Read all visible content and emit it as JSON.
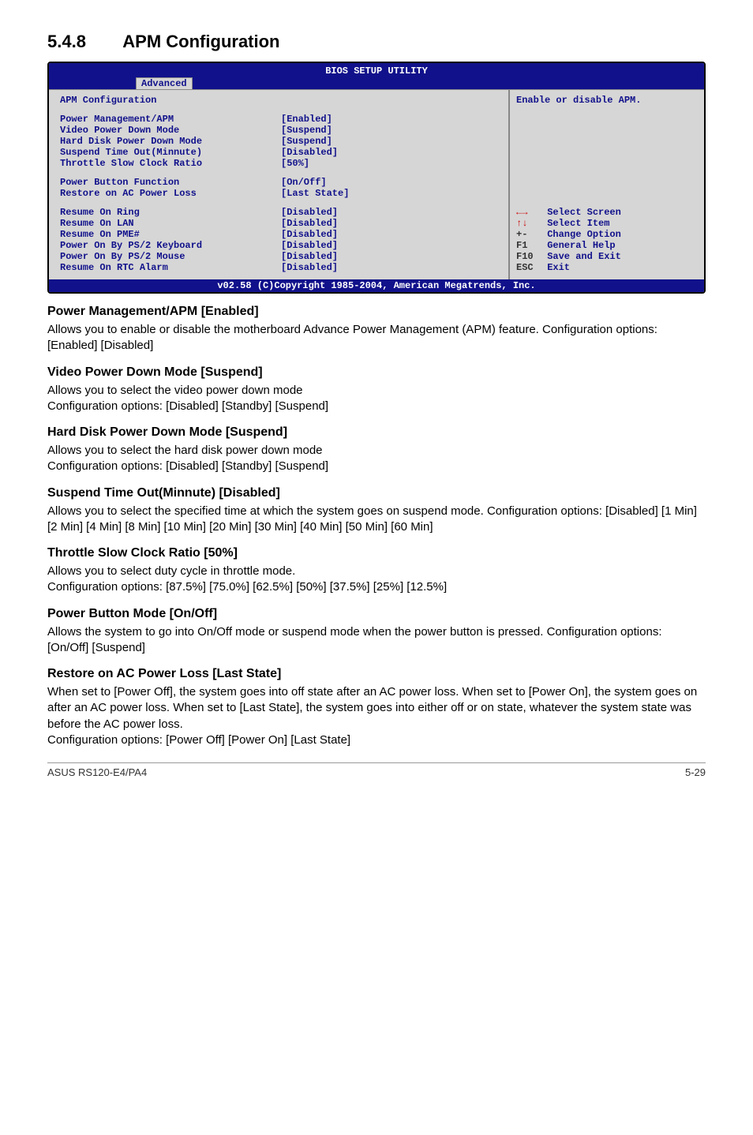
{
  "section": {
    "number": "5.4.8",
    "title": "APM Configuration"
  },
  "bios": {
    "title": "BIOS SETUP UTILITY",
    "tab": "Advanced",
    "panel_title": "APM Configuration",
    "group1": [
      {
        "label": "Power Management/APM",
        "value": "[Enabled]"
      },
      {
        "label": "Video Power Down Mode",
        "value": "[Suspend]"
      },
      {
        "label": "Hard Disk Power Down Mode",
        "value": "[Suspend]"
      },
      {
        "label": "Suspend Time Out(Minnute)",
        "value": "[Disabled]"
      },
      {
        "label": "Throttle Slow Clock Ratio",
        "value": "[50%]"
      }
    ],
    "group2": [
      {
        "label": "Power Button Function",
        "value": "[On/Off]"
      },
      {
        "label": "Restore on AC Power Loss",
        "value": "[Last State]"
      }
    ],
    "group3": [
      {
        "label": "Resume On Ring",
        "value": "[Disabled]"
      },
      {
        "label": "Resume On LAN",
        "value": "[Disabled]"
      },
      {
        "label": "Resume On PME#",
        "value": "[Disabled]"
      },
      {
        "label": "Power On By PS/2 Keyboard",
        "value": "[Disabled]"
      },
      {
        "label": "Power On By PS/2 Mouse",
        "value": "[Disabled]"
      },
      {
        "label": "Resume On RTC Alarm",
        "value": "[Disabled]"
      }
    ],
    "help_text": "Enable or disable APM.",
    "nav": {
      "lr": "Select Screen",
      "ud": "Select Item",
      "pm": "Change Option",
      "pm_key": "+-",
      "f1": "General Help",
      "f1_key": "F1",
      "f10": "Save and Exit",
      "f10_key": "F10",
      "esc": "Exit",
      "esc_key": "ESC"
    },
    "footer": "v02.58 (C)Copyright 1985-2004, American Megatrends, Inc."
  },
  "settings": [
    {
      "head": "Power Management/APM [Enabled]",
      "body": "Allows you to enable or disable the motherboard Advance Power Management (APM) feature. Configuration options: [Enabled] [Disabled]"
    },
    {
      "head": "Video Power Down Mode [Suspend]",
      "body": "Allows you to select the video power down mode\nConfiguration options: [Disabled] [Standby] [Suspend]"
    },
    {
      "head": "Hard Disk Power Down Mode [Suspend]",
      "body": "Allows you to select the hard disk power down mode\nConfiguration options: [Disabled] [Standby] [Suspend]"
    },
    {
      "head": "Suspend Time Out(Minnute) [Disabled]",
      "body": "Allows you to select the specified time at which the system goes on suspend mode. Configuration options: [Disabled] [1 Min] [2 Min] [4 Min] [8 Min] [10 Min] [20 Min] [30 Min] [40 Min] [50 Min] [60 Min]"
    },
    {
      "head": "Throttle Slow Clock Ratio [50%]",
      "body": "Allows you to select duty cycle in throttle mode.\nConfiguration options: [87.5%] [75.0%] [62.5%] [50%] [37.5%] [25%] [12.5%]"
    },
    {
      "head": "Power Button Mode [On/Off]",
      "body": "Allows the system to go into On/Off mode or suspend mode when the power button is pressed. Configuration options: [On/Off] [Suspend]"
    },
    {
      "head": "Restore on AC Power Loss [Last State]",
      "body": "When set to [Power Off], the system goes into off state after an AC power loss. When set to [Power On], the system goes on after an AC power loss. When set to [Last State], the system goes into either off or on state, whatever the system state was before the AC power loss.\nConfiguration options: [Power Off] [Power On] [Last State]"
    }
  ],
  "footer": {
    "left": "ASUS RS120-E4/PA4",
    "right": "5-29"
  }
}
